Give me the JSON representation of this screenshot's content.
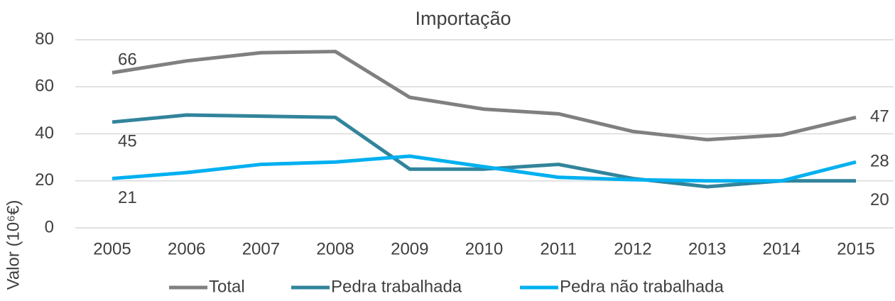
{
  "chart_data": {
    "type": "line",
    "title": "Importação",
    "y_label": "Valor (10⁶€)",
    "categories": [
      "2005",
      "2006",
      "2007",
      "2008",
      "2009",
      "2010",
      "2011",
      "2012",
      "2013",
      "2014",
      "2015"
    ],
    "series": [
      {
        "name": "Total",
        "color": "#808080",
        "values": [
          66,
          71,
          74.5,
          75,
          55.5,
          50.5,
          48.5,
          41,
          37.5,
          39.5,
          47
        ],
        "value_labels": [
          "66",
          null,
          null,
          null,
          null,
          null,
          null,
          null,
          null,
          null,
          "47"
        ]
      },
      {
        "name": "Pedra trabalhada",
        "color": "#31849b",
        "values": [
          45,
          48,
          47.5,
          47,
          25,
          25,
          27,
          21,
          17.5,
          20,
          20
        ],
        "value_labels": [
          "45",
          null,
          null,
          null,
          null,
          null,
          null,
          null,
          null,
          null,
          "20"
        ]
      },
      {
        "name": "Pedra não trabalhada",
        "color": "#00b0f0",
        "values": [
          21,
          23.5,
          27,
          28,
          30.5,
          26,
          21.5,
          20.5,
          20,
          20,
          28
        ],
        "value_labels": [
          "21",
          null,
          null,
          null,
          null,
          null,
          null,
          null,
          null,
          null,
          "28"
        ]
      }
    ],
    "ylim": [
      0,
      80
    ],
    "yticks": [
      0,
      20,
      40,
      60,
      80
    ],
    "grid": true,
    "legend": "bottom"
  }
}
